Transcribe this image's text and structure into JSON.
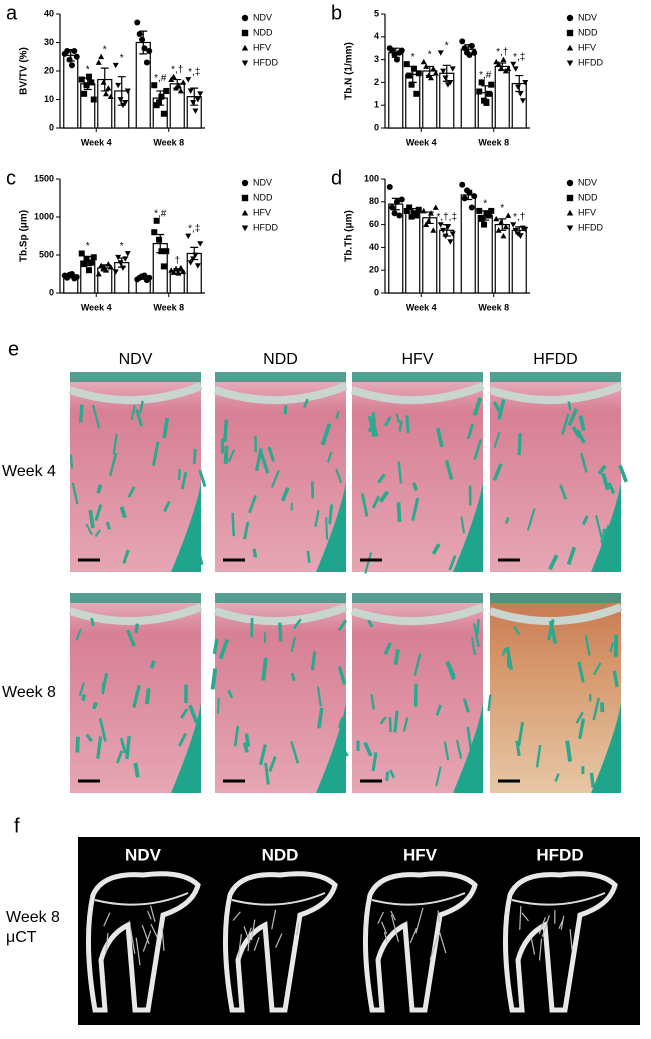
{
  "chart_data": [
    {
      "type": "bar",
      "panel": "a",
      "ylabel": "BV/TV (%)",
      "categories": [
        "Week 4",
        "Week 8"
      ],
      "ylim": [
        0,
        40
      ],
      "yticks": [
        0,
        10,
        20,
        30,
        40
      ],
      "series": [
        {
          "name": "NDV",
          "marker": "circle",
          "color": "#000000",
          "values": [
            25.5,
            30
          ],
          "errors": [
            2,
            4
          ],
          "annotations": [
            null,
            null
          ],
          "points": [
            [
              26,
              27,
              24,
              22,
              27,
              25
            ],
            [
              37,
              33,
              31,
              28,
              23,
              27
            ]
          ]
        },
        {
          "name": "NDD",
          "marker": "square",
          "color": "#000000",
          "values": [
            15.5,
            10.5
          ],
          "errors": [
            2,
            2.5
          ],
          "annotations": [
            "*",
            "*,#"
          ],
          "points": [
            [
              17,
              12,
              15,
              18,
              16,
              10
            ],
            [
              15,
              8,
              9,
              11,
              5,
              13
            ]
          ]
        },
        {
          "name": "HFV",
          "marker": "triangle-up",
          "color": "#000000",
          "values": [
            17,
            15.5
          ],
          "errors": [
            4,
            1.5
          ],
          "annotations": [
            "*",
            "*,†"
          ],
          "points": [
            [
              23,
              25,
              16,
              12,
              14,
              11
            ],
            [
              17,
              18,
              14,
              15,
              13,
              16
            ]
          ]
        },
        {
          "name": "HFDD",
          "marker": "triangle-down",
          "color": "#000000",
          "values": [
            13,
            11
          ],
          "errors": [
            5,
            3
          ],
          "annotations": [
            "*",
            "*,‡"
          ],
          "points": [
            [
              22,
              15,
              10,
              8,
              9,
              13
            ],
            [
              17,
              13,
              9,
              6,
              10,
              12
            ]
          ]
        }
      ]
    },
    {
      "type": "bar",
      "panel": "b",
      "ylabel": "Tb.N (1/mm)",
      "categories": [
        "Week 4",
        "Week 8"
      ],
      "ylim": [
        0,
        5
      ],
      "yticks": [
        0,
        1,
        2,
        3,
        4,
        5
      ],
      "series": [
        {
          "name": "NDV",
          "marker": "circle",
          "color": "#000000",
          "values": [
            3.3,
            3.45
          ],
          "errors": [
            0.2,
            0.2
          ],
          "annotations": [
            null,
            null
          ],
          "points": [
            [
              3.5,
              3.4,
              3.2,
              3.0,
              3.3,
              3.4
            ],
            [
              3.8,
              3.5,
              3.3,
              3.2,
              3.6,
              3.3
            ]
          ]
        },
        {
          "name": "NDD",
          "marker": "square",
          "color": "#000000",
          "values": [
            2.35,
            1.55
          ],
          "errors": [
            0.35,
            0.3
          ],
          "annotations": [
            "*",
            "*,#"
          ],
          "points": [
            [
              2.8,
              2.3,
              1.9,
              2.6,
              1.5,
              2.4
            ],
            [
              1.6,
              2.0,
              1.2,
              1.1,
              1.5,
              1.9
            ]
          ]
        },
        {
          "name": "HFV",
          "marker": "triangle-up",
          "color": "#000000",
          "values": [
            2.5,
            2.7
          ],
          "errors": [
            0.2,
            0.15
          ],
          "annotations": [
            "*",
            "*,†"
          ],
          "points": [
            [
              2.9,
              2.7,
              2.3,
              2.2,
              2.6,
              2.4
            ],
            [
              2.9,
              2.8,
              2.6,
              3.0,
              2.5,
              2.6
            ]
          ]
        },
        {
          "name": "HFDD",
          "marker": "triangle-down",
          "color": "#000000",
          "values": [
            2.4,
            1.95
          ],
          "errors": [
            0.35,
            0.35
          ],
          "annotations": [
            "*",
            "*,‡"
          ],
          "points": [
            [
              3.3,
              2.5,
              2.2,
              1.9,
              2.0,
              2.6
            ],
            [
              2.8,
              2.6,
              1.8,
              1.5,
              1.2,
              2.0
            ]
          ]
        }
      ]
    },
    {
      "type": "bar",
      "panel": "c",
      "ylabel": "Tb.Sp (μm)",
      "categories": [
        "Week 4",
        "Week 8"
      ],
      "ylim": [
        0,
        1500
      ],
      "yticks": [
        0,
        500,
        1000,
        1500
      ],
      "series": [
        {
          "name": "NDV",
          "marker": "circle",
          "color": "#000000",
          "values": [
            220,
            200
          ],
          "errors": [
            20,
            20
          ],
          "annotations": [
            null,
            null
          ],
          "points": [
            [
              230,
              200,
              240,
              250,
              190,
              210
            ],
            [
              180,
              200,
              220,
              230,
              170,
              200
            ]
          ]
        },
        {
          "name": "NDD",
          "marker": "square",
          "color": "#000000",
          "values": [
            420,
            650
          ],
          "errors": [
            60,
            120
          ],
          "annotations": [
            "*",
            "*,#"
          ],
          "points": [
            [
              520,
              380,
              450,
              300,
              400,
              470
            ],
            [
              800,
              950,
              700,
              550,
              350,
              550
            ]
          ]
        },
        {
          "name": "HFV",
          "marker": "triangle-up",
          "color": "#000000",
          "values": [
            330,
            290
          ],
          "errors": [
            40,
            30
          ],
          "annotations": [
            null,
            "†"
          ],
          "points": [
            [
              250,
              360,
              330,
              300,
              380,
              340
            ],
            [
              300,
              270,
              320,
              260,
              330,
              280
            ]
          ]
        },
        {
          "name": "HFDD",
          "marker": "triangle-down",
          "color": "#000000",
          "values": [
            400,
            520
          ],
          "errors": [
            60,
            80
          ],
          "annotations": [
            "*",
            "*,‡"
          ],
          "points": [
            [
              280,
              470,
              400,
              330,
              450,
              520
            ],
            [
              750,
              400,
              450,
              500,
              360,
              650
            ]
          ]
        }
      ]
    },
    {
      "type": "bar",
      "panel": "d",
      "ylabel": "Tb.Th (μm)",
      "categories": [
        "Week 4",
        "Week 8"
      ],
      "ylim": [
        0,
        100
      ],
      "yticks": [
        0,
        20,
        40,
        60,
        80,
        100
      ],
      "series": [
        {
          "name": "NDV",
          "marker": "circle",
          "color": "#000000",
          "values": [
            78,
            86
          ],
          "errors": [
            5,
            4
          ],
          "annotations": [
            null,
            null
          ],
          "points": [
            [
              93,
              75,
              70,
              80,
              68,
              82
            ],
            [
              95,
              83,
              90,
              88,
              75,
              85
            ]
          ]
        },
        {
          "name": "NDD",
          "marker": "square",
          "color": "#000000",
          "values": [
            71,
            68
          ],
          "errors": [
            3,
            4
          ],
          "annotations": [
            null,
            "*"
          ],
          "points": [
            [
              72,
              75,
              67,
              70,
              68,
              73
            ],
            [
              72,
              65,
              60,
              70,
              68,
              72
            ]
          ]
        },
        {
          "name": "HFV",
          "marker": "triangle-up",
          "color": "#000000",
          "values": [
            66,
            60
          ],
          "errors": [
            5,
            5
          ],
          "annotations": [
            null,
            "*"
          ],
          "points": [
            [
              72,
              60,
              63,
              70,
              55,
              75
            ],
            [
              65,
              55,
              62,
              50,
              58,
              68
            ]
          ]
        },
        {
          "name": "HFDD",
          "marker": "triangle-down",
          "color": "#000000",
          "values": [
            55,
            55
          ],
          "errors": [
            5,
            3
          ],
          "annotations": [
            "*,†,‡",
            "*,†"
          ],
          "points": [
            [
              60,
              55,
              50,
              58,
              45,
              52
            ],
            [
              60,
              55,
              52,
              50,
              57,
              56
            ]
          ]
        }
      ]
    }
  ],
  "panel_e": {
    "label": "e",
    "columns": [
      "NDV",
      "NDD",
      "HFV",
      "HFDD"
    ],
    "rows": [
      "Week 4",
      "Week 8"
    ]
  },
  "panel_f": {
    "label": "f",
    "columns": [
      "NDV",
      "NDD",
      "HFV",
      "HFDD"
    ],
    "row_label": [
      "Week 8",
      "μCT"
    ]
  }
}
